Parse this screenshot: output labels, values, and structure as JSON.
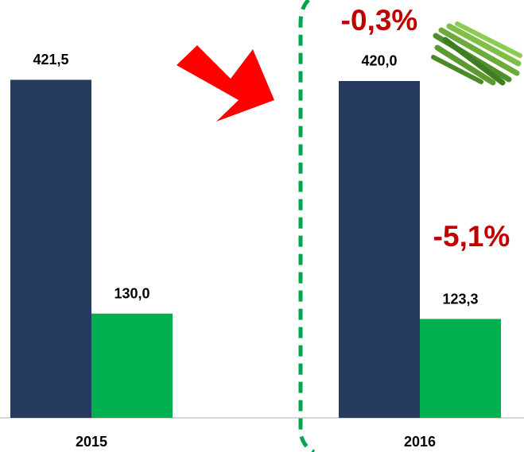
{
  "chart_data": {
    "type": "bar",
    "categories": [
      "2015",
      "2016"
    ],
    "series": [
      {
        "color": "#243a5e",
        "values": [
          421.5,
          420.0
        ],
        "value_labels": [
          "421,5",
          "420,0"
        ]
      },
      {
        "color": "#00b050",
        "values": [
          130.0,
          123.3
        ],
        "value_labels": [
          "130,0",
          "123,3"
        ]
      }
    ],
    "ylim": [
      0,
      520
    ],
    "annotations": [
      "-0,3%",
      "-5,1%"
    ]
  }
}
